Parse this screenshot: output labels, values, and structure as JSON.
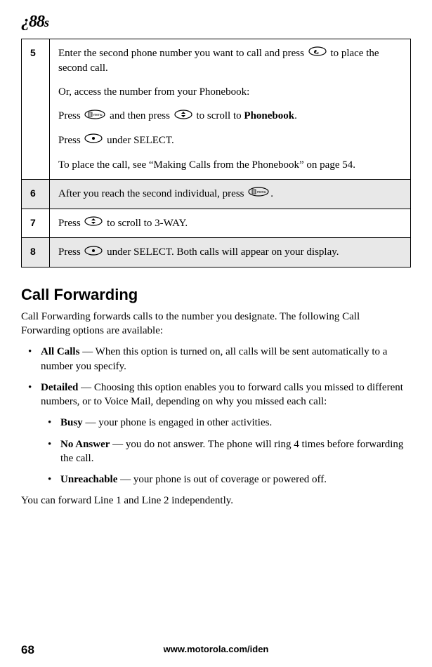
{
  "header": {
    "logo": "¿88",
    "logo_suffix": "s"
  },
  "steps": [
    {
      "num": "5",
      "shade": false,
      "paragraphs": [
        {
          "segments": [
            {
              "t": "Enter the second phone number you want to call and press "
            },
            {
              "icon": "call"
            },
            {
              "t": " to place the second call."
            }
          ]
        },
        {
          "segments": [
            {
              "t": "Or, access the number from your Phonebook:"
            }
          ]
        },
        {
          "segments": [
            {
              "t": "Press "
            },
            {
              "icon": "menu"
            },
            {
              "t": " and then press "
            },
            {
              "icon": "scroll"
            },
            {
              "t": " to scroll to "
            },
            {
              "b": "Phonebook"
            },
            {
              "t": "."
            }
          ]
        },
        {
          "segments": [
            {
              "t": "Press "
            },
            {
              "icon": "soft"
            },
            {
              "t": " under SELECT."
            }
          ]
        },
        {
          "segments": [
            {
              "t": "To place the call, see “Making Calls from the Phonebook” on page 54."
            }
          ]
        }
      ]
    },
    {
      "num": "6",
      "shade": true,
      "paragraphs": [
        {
          "segments": [
            {
              "t": "After you reach the second individual, press "
            },
            {
              "icon": "menu"
            },
            {
              "t": "."
            }
          ]
        }
      ]
    },
    {
      "num": "7",
      "shade": false,
      "paragraphs": [
        {
          "segments": [
            {
              "t": "Press "
            },
            {
              "icon": "scroll"
            },
            {
              "t": " to scroll to 3-WAY."
            }
          ]
        }
      ]
    },
    {
      "num": "8",
      "shade": true,
      "paragraphs": [
        {
          "segments": [
            {
              "t": "Press "
            },
            {
              "icon": "soft"
            },
            {
              "t": " under SELECT. Both calls will appear on your display."
            }
          ]
        }
      ]
    }
  ],
  "section": {
    "title": "Call Forwarding",
    "intro": "Call Forwarding forwards calls to the number you designate. The following Call Forwarding options are available:",
    "bullets": [
      {
        "label": "All Calls",
        "text": " — When this option is turned on, all calls will be sent automatically to a number you specify."
      },
      {
        "label": "Detailed",
        "text": " — Choosing this option enables you to forward calls you missed to different numbers, or to Voice Mail, depending on why you missed each call:",
        "sub": [
          {
            "label": "Busy",
            "text": " — your phone is engaged in other activities."
          },
          {
            "label": "No Answer",
            "text": " — you do not answer. The phone will ring 4 times before forwarding the call."
          },
          {
            "label": "Unreachable",
            "text": " — your phone is out of coverage or powered off."
          }
        ]
      }
    ],
    "outro": "You can forward Line 1 and Line 2 independently."
  },
  "footer": {
    "url": "www.motorola.com/iden",
    "page": "68"
  },
  "icons": {
    "call": "call-icon",
    "menu": "menu-icon",
    "scroll": "scroll-icon",
    "soft": "soft-key-icon"
  }
}
